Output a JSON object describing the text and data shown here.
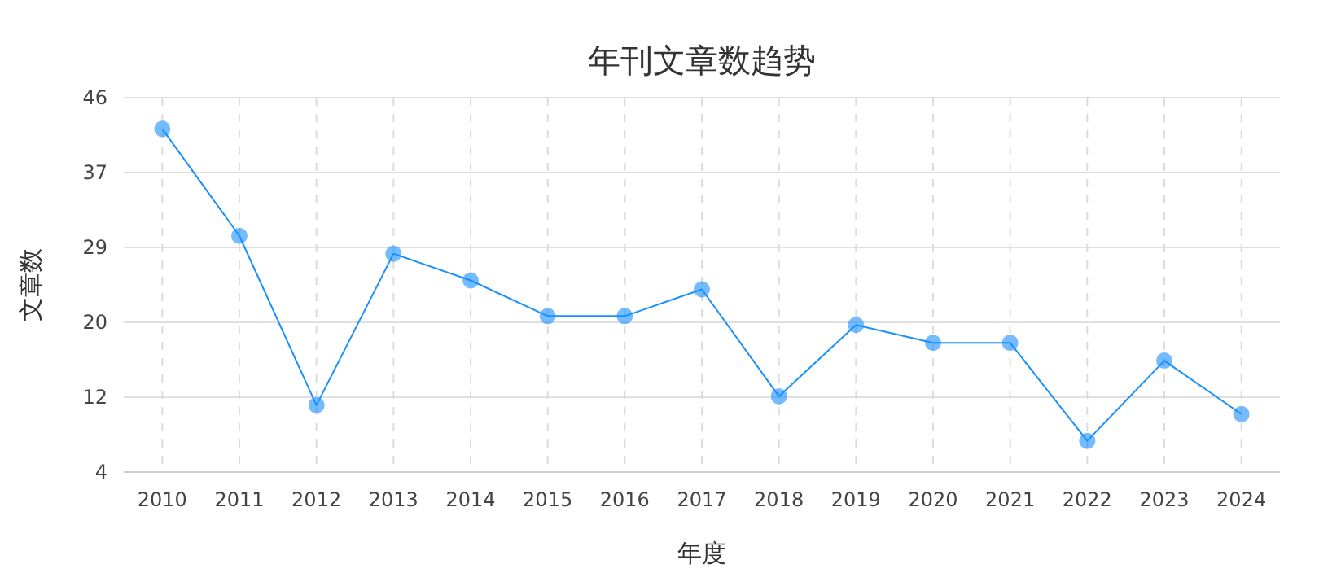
{
  "chart_data": {
    "type": "line",
    "title": "年刊文章数趋势",
    "xlabel": "年度",
    "ylabel": "文章数",
    "categories": [
      "2010",
      "2011",
      "2012",
      "2013",
      "2014",
      "2015",
      "2016",
      "2017",
      "2018",
      "2019",
      "2020",
      "2021",
      "2022",
      "2023",
      "2024"
    ],
    "series": [
      {
        "color": "#1890ff",
        "values": [
          42,
          30,
          11,
          28,
          25,
          21,
          21,
          24,
          12,
          20,
          18,
          18,
          7,
          16,
          10
        ]
      }
    ],
    "ylim": [
      3.5,
      45.5
    ],
    "yticks": [
      {
        "value": 3.5,
        "label": "4"
      },
      {
        "value": 11.9,
        "label": "12"
      },
      {
        "value": 20.3,
        "label": "20"
      },
      {
        "value": 28.7,
        "label": "29"
      },
      {
        "value": 37.1,
        "label": "37"
      },
      {
        "value": 45.5,
        "label": "46"
      }
    ],
    "grid": true,
    "marker": "circle",
    "line_style": "solid"
  }
}
